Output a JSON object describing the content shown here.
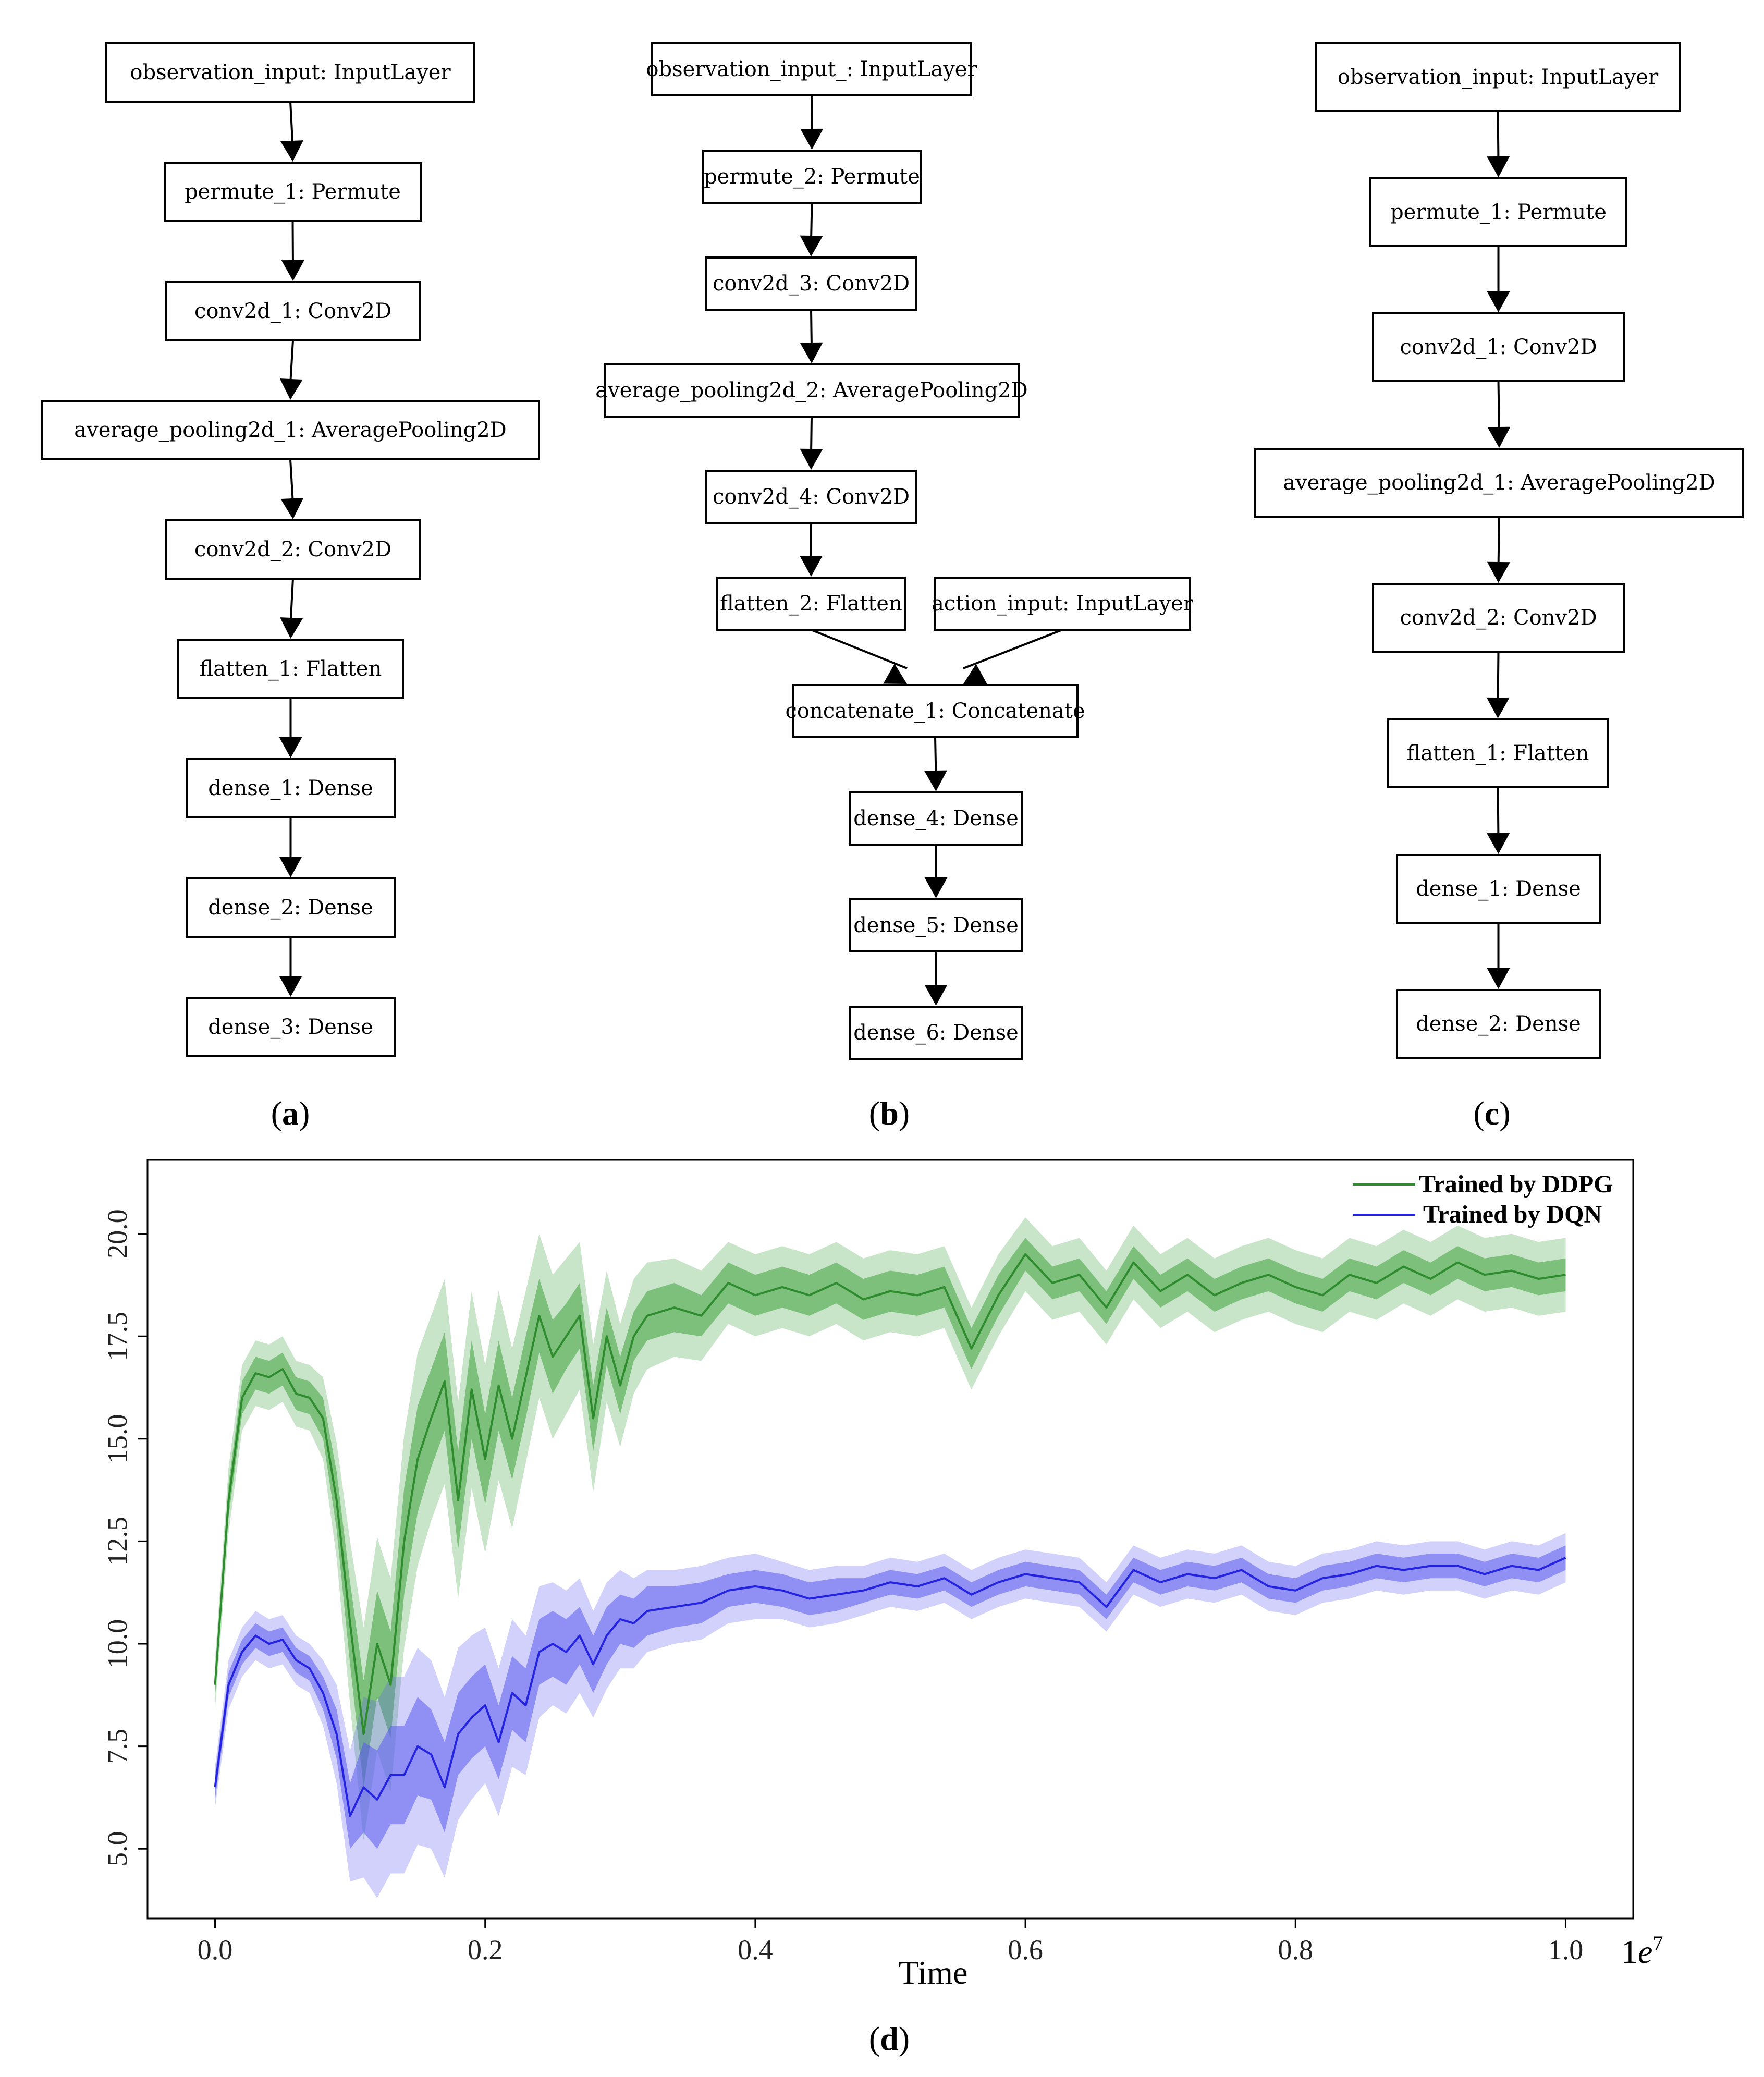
{
  "diagrams": [
    {
      "label": "(a)",
      "label_bold": "a",
      "nodes": [
        {
          "id": "a1",
          "text": "observation_input: InputLayer"
        },
        {
          "id": "a2",
          "text": "permute_1: Permute"
        },
        {
          "id": "a3",
          "text": "conv2d_1: Conv2D"
        },
        {
          "id": "a4",
          "text": "average_pooling2d_1: AveragePooling2D"
        },
        {
          "id": "a5",
          "text": "conv2d_2: Conv2D"
        },
        {
          "id": "a6",
          "text": "flatten_1: Flatten"
        },
        {
          "id": "a7",
          "text": "dense_1: Dense"
        },
        {
          "id": "a8",
          "text": "dense_2: Dense"
        },
        {
          "id": "a9",
          "text": "dense_3: Dense"
        }
      ],
      "edges": [
        [
          "a1",
          "a2"
        ],
        [
          "a2",
          "a3"
        ],
        [
          "a3",
          "a4"
        ],
        [
          "a4",
          "a5"
        ],
        [
          "a5",
          "a6"
        ],
        [
          "a6",
          "a7"
        ],
        [
          "a7",
          "a8"
        ],
        [
          "a8",
          "a9"
        ]
      ]
    },
    {
      "label": "(b)",
      "label_bold": "b",
      "nodes": [
        {
          "id": "b1",
          "text": "observation_input_: InputLayer"
        },
        {
          "id": "b2",
          "text": "permute_2: Permute"
        },
        {
          "id": "b3",
          "text": "conv2d_3: Conv2D"
        },
        {
          "id": "b4",
          "text": "average_pooling2d_2: AveragePooling2D"
        },
        {
          "id": "b5",
          "text": "conv2d_4: Conv2D"
        },
        {
          "id": "b6",
          "text": "flatten_2: Flatten"
        },
        {
          "id": "b7",
          "text": "action_input: InputLayer"
        },
        {
          "id": "b8",
          "text": "concatenate_1: Concatenate"
        },
        {
          "id": "b9",
          "text": "dense_4: Dense"
        },
        {
          "id": "b10",
          "text": "dense_5: Dense"
        },
        {
          "id": "b11",
          "text": "dense_6: Dense"
        }
      ],
      "edges": [
        [
          "b1",
          "b2"
        ],
        [
          "b2",
          "b3"
        ],
        [
          "b3",
          "b4"
        ],
        [
          "b4",
          "b5"
        ],
        [
          "b5",
          "b6"
        ],
        [
          "b6",
          "b8"
        ],
        [
          "b7",
          "b8"
        ],
        [
          "b8",
          "b9"
        ],
        [
          "b9",
          "b10"
        ],
        [
          "b10",
          "b11"
        ]
      ]
    },
    {
      "label": "(c)",
      "label_bold": "c",
      "nodes": [
        {
          "id": "c1",
          "text": "observation_input: InputLayer"
        },
        {
          "id": "c2",
          "text": "permute_1: Permute"
        },
        {
          "id": "c3",
          "text": "conv2d_1: Conv2D"
        },
        {
          "id": "c4",
          "text": "average_pooling2d_1: AveragePooling2D"
        },
        {
          "id": "c5",
          "text": "conv2d_2: Conv2D"
        },
        {
          "id": "c6",
          "text": "flatten_1: Flatten"
        },
        {
          "id": "c7",
          "text": "dense_1: Dense"
        },
        {
          "id": "c8",
          "text": "dense_2: Dense"
        }
      ],
      "edges": [
        [
          "c1",
          "c2"
        ],
        [
          "c2",
          "c3"
        ],
        [
          "c3",
          "c4"
        ],
        [
          "c4",
          "c5"
        ],
        [
          "c5",
          "c6"
        ],
        [
          "c6",
          "c7"
        ],
        [
          "c7",
          "c8"
        ]
      ]
    }
  ],
  "chart_label": "(d)",
  "chart_label_bold": "d",
  "chart_data": {
    "type": "line",
    "title": "",
    "xlabel": "Time",
    "ylabel": "",
    "x_offset_label": "1e7",
    "xlim": [
      -0.05,
      1.05
    ],
    "ylim": [
      3.3,
      21.8
    ],
    "xticks": [
      0.0,
      0.2,
      0.4,
      0.6,
      0.8,
      1.0
    ],
    "xtick_labels": [
      "0.0",
      "0.2",
      "0.4",
      "0.6",
      "0.8",
      "1.0"
    ],
    "yticks": [
      5.0,
      7.5,
      10.0,
      12.5,
      15.0,
      17.5,
      20.0
    ],
    "ytick_labels": [
      "5.0",
      "7.5",
      "10.0",
      "12.5",
      "15.0",
      "17.5",
      "20.0"
    ],
    "grid": false,
    "legend_position": "top-right",
    "series": [
      {
        "name": "Trained by DDPG",
        "color": "#2e8b2e",
        "band_color": "#3ca33c",
        "x": [
          0.0,
          0.01,
          0.02,
          0.03,
          0.04,
          0.05,
          0.06,
          0.07,
          0.08,
          0.09,
          0.1,
          0.11,
          0.12,
          0.13,
          0.14,
          0.15,
          0.16,
          0.17,
          0.18,
          0.19,
          0.2,
          0.21,
          0.22,
          0.23,
          0.24,
          0.25,
          0.26,
          0.27,
          0.28,
          0.29,
          0.3,
          0.31,
          0.32,
          0.34,
          0.36,
          0.38,
          0.4,
          0.42,
          0.44,
          0.46,
          0.48,
          0.5,
          0.52,
          0.54,
          0.56,
          0.58,
          0.6,
          0.62,
          0.64,
          0.66,
          0.68,
          0.7,
          0.72,
          0.74,
          0.76,
          0.78,
          0.8,
          0.82,
          0.84,
          0.86,
          0.88,
          0.9,
          0.92,
          0.94,
          0.96,
          0.98,
          1.0
        ],
        "y": [
          9.0,
          13.5,
          16.0,
          16.6,
          16.5,
          16.7,
          16.1,
          16.0,
          15.5,
          13.5,
          10.5,
          7.8,
          10.0,
          9.0,
          12.5,
          14.5,
          15.5,
          16.4,
          13.5,
          16.2,
          14.5,
          16.3,
          15.0,
          16.5,
          18.0,
          17.0,
          17.5,
          18.0,
          15.5,
          17.5,
          16.3,
          17.5,
          18.0,
          18.2,
          18.0,
          18.8,
          18.5,
          18.7,
          18.5,
          18.8,
          18.4,
          18.6,
          18.5,
          18.7,
          17.2,
          18.5,
          19.5,
          18.8,
          19.0,
          18.2,
          19.3,
          18.6,
          19.0,
          18.5,
          18.8,
          19.0,
          18.7,
          18.5,
          19.0,
          18.8,
          19.2,
          18.9,
          19.3,
          19.0,
          19.1,
          18.9,
          19.0
        ],
        "band_inner": [
          0.3,
          0.4,
          0.4,
          0.4,
          0.4,
          0.4,
          0.4,
          0.4,
          0.5,
          0.7,
          1.0,
          1.3,
          1.3,
          1.3,
          1.3,
          1.3,
          1.2,
          1.2,
          1.2,
          1.2,
          1.1,
          1.1,
          1.0,
          1.0,
          0.9,
          0.9,
          0.8,
          0.8,
          0.8,
          0.7,
          0.7,
          0.6,
          0.6,
          0.6,
          0.5,
          0.5,
          0.5,
          0.5,
          0.5,
          0.5,
          0.5,
          0.5,
          0.5,
          0.5,
          0.5,
          0.5,
          0.4,
          0.4,
          0.4,
          0.4,
          0.4,
          0.4,
          0.4,
          0.4,
          0.4,
          0.4,
          0.4,
          0.4,
          0.4,
          0.4,
          0.4,
          0.4,
          0.4,
          0.4,
          0.4,
          0.4,
          0.4
        ],
        "band_outer": [
          0.6,
          0.8,
          0.8,
          0.8,
          0.8,
          0.8,
          0.8,
          0.8,
          1.0,
          1.4,
          2.0,
          2.6,
          2.6,
          2.6,
          2.6,
          2.6,
          2.5,
          2.5,
          2.4,
          2.4,
          2.3,
          2.3,
          2.2,
          2.1,
          2.0,
          2.0,
          1.9,
          1.8,
          1.8,
          1.6,
          1.5,
          1.4,
          1.3,
          1.2,
          1.1,
          1.0,
          1.0,
          1.0,
          1.0,
          1.0,
          1.0,
          1.0,
          1.0,
          1.0,
          1.0,
          1.0,
          0.9,
          0.9,
          0.9,
          0.9,
          0.9,
          0.9,
          0.9,
          0.9,
          0.9,
          0.9,
          0.9,
          0.9,
          0.9,
          0.9,
          0.9,
          0.9,
          0.9,
          0.9,
          0.9,
          0.9,
          0.9
        ]
      },
      {
        "name": "Trained by DQN",
        "color": "#2424e0",
        "band_color": "#5a5aef",
        "x": [
          0.0,
          0.01,
          0.02,
          0.03,
          0.04,
          0.05,
          0.06,
          0.07,
          0.08,
          0.09,
          0.1,
          0.11,
          0.12,
          0.13,
          0.14,
          0.15,
          0.16,
          0.17,
          0.18,
          0.19,
          0.2,
          0.21,
          0.22,
          0.23,
          0.24,
          0.25,
          0.26,
          0.27,
          0.28,
          0.29,
          0.3,
          0.31,
          0.32,
          0.34,
          0.36,
          0.38,
          0.4,
          0.42,
          0.44,
          0.46,
          0.48,
          0.5,
          0.52,
          0.54,
          0.56,
          0.58,
          0.6,
          0.62,
          0.64,
          0.66,
          0.68,
          0.7,
          0.72,
          0.74,
          0.76,
          0.78,
          0.8,
          0.82,
          0.84,
          0.86,
          0.88,
          0.9,
          0.92,
          0.94,
          0.96,
          0.98,
          1.0
        ],
        "y": [
          6.5,
          9.0,
          9.8,
          10.2,
          10.0,
          10.1,
          9.6,
          9.4,
          8.8,
          7.8,
          5.8,
          6.5,
          6.2,
          6.8,
          6.8,
          7.5,
          7.3,
          6.5,
          7.8,
          8.2,
          8.5,
          7.6,
          8.8,
          8.5,
          9.8,
          10.0,
          9.8,
          10.2,
          9.5,
          10.2,
          10.6,
          10.5,
          10.8,
          10.9,
          11.0,
          11.3,
          11.4,
          11.3,
          11.1,
          11.2,
          11.3,
          11.5,
          11.4,
          11.6,
          11.2,
          11.5,
          11.7,
          11.6,
          11.5,
          10.9,
          11.8,
          11.5,
          11.7,
          11.6,
          11.8,
          11.4,
          11.3,
          11.6,
          11.7,
          11.9,
          11.8,
          11.9,
          11.9,
          11.7,
          11.9,
          11.8,
          12.1
        ],
        "band_inner": [
          0.3,
          0.3,
          0.3,
          0.3,
          0.3,
          0.3,
          0.3,
          0.3,
          0.4,
          0.6,
          0.8,
          1.1,
          1.2,
          1.2,
          1.2,
          1.2,
          1.1,
          1.1,
          1.0,
          1.0,
          1.0,
          0.9,
          0.9,
          0.9,
          0.8,
          0.8,
          0.8,
          0.7,
          0.7,
          0.7,
          0.6,
          0.6,
          0.6,
          0.5,
          0.5,
          0.4,
          0.4,
          0.4,
          0.4,
          0.4,
          0.3,
          0.3,
          0.3,
          0.3,
          0.3,
          0.3,
          0.3,
          0.3,
          0.3,
          0.3,
          0.3,
          0.3,
          0.3,
          0.3,
          0.3,
          0.3,
          0.3,
          0.3,
          0.3,
          0.3,
          0.3,
          0.3,
          0.3,
          0.3,
          0.3,
          0.3,
          0.3
        ],
        "band_outer": [
          0.5,
          0.6,
          0.6,
          0.6,
          0.6,
          0.6,
          0.6,
          0.6,
          0.8,
          1.2,
          1.6,
          2.2,
          2.4,
          2.4,
          2.4,
          2.4,
          2.3,
          2.2,
          2.1,
          2.0,
          1.9,
          1.8,
          1.8,
          1.7,
          1.6,
          1.5,
          1.5,
          1.4,
          1.3,
          1.3,
          1.2,
          1.1,
          1.0,
          0.9,
          0.9,
          0.8,
          0.8,
          0.7,
          0.7,
          0.7,
          0.6,
          0.6,
          0.6,
          0.6,
          0.6,
          0.6,
          0.6,
          0.6,
          0.6,
          0.6,
          0.6,
          0.6,
          0.6,
          0.6,
          0.6,
          0.6,
          0.6,
          0.6,
          0.6,
          0.6,
          0.6,
          0.6,
          0.6,
          0.6,
          0.6,
          0.6,
          0.6
        ]
      }
    ]
  }
}
